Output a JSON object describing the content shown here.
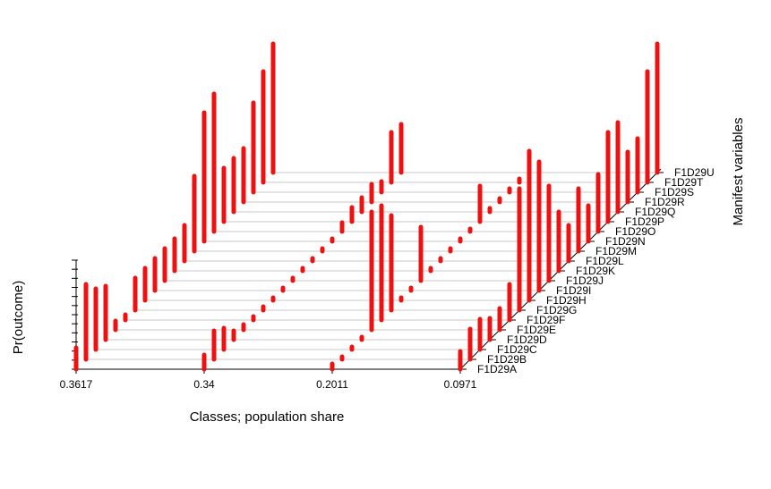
{
  "chart_data": {
    "type": "bar",
    "title": "",
    "xlabel": "Classes; population share",
    "ylabel": "Pr(outcome)",
    "zlabel": "Manifest variables",
    "ylim": [
      0,
      1
    ],
    "grid": true,
    "colors": {
      "bars": "#ee1111",
      "grid": "#c8c8c8",
      "axis": "#000000"
    },
    "classes": [
      "0.3617",
      "0.34",
      "0.2011",
      "0.0971"
    ],
    "variables": [
      "F1D29A",
      "F1D29B",
      "F1D29C",
      "F1D29D",
      "F1D29E",
      "F1D29F",
      "F1D29G",
      "F1D29H",
      "F1D29I",
      "F1D29J",
      "F1D29K",
      "F1D29L",
      "F1D29M",
      "F1D29N",
      "F1D29O",
      "F1D29P",
      "F1D29Q",
      "F1D29R",
      "F1D29S",
      "F1D29T",
      "F1D29U"
    ],
    "series": [
      {
        "values": [
          0.12,
          0.42,
          0.34,
          0.3,
          0.05,
          0.03,
          0.18,
          0.18,
          0.18,
          0.18,
          0.18,
          0.2,
          0.42,
          0.72,
          0.77,
          0.3,
          0.3,
          0.3,
          0.5,
          0.62,
          0.72
        ]
      },
      {
        "values": [
          0.08,
          0.16,
          0.12,
          0.05,
          0.03,
          0.02,
          0.02,
          0.01,
          0.01,
          0.01,
          0.01,
          0.01,
          0.01,
          0.01,
          0.05,
          0.08,
          0.08,
          0.1,
          0.06,
          0.28,
          0.27
        ]
      },
      {
        "values": [
          0.03,
          0.01,
          0.01,
          0.01,
          0.66,
          0.64,
          0.53,
          0.01,
          0.01,
          0.3,
          0.01,
          0.01,
          0.01,
          0.01,
          0.01,
          0.2,
          0.02,
          0.02,
          0.02,
          0.02,
          0.12
        ]
      },
      {
        "values": [
          0.1,
          0.17,
          0.17,
          0.12,
          0.12,
          0.2,
          0.68,
          0.73,
          0.72,
          0.53,
          0.33,
          0.2,
          0.35,
          0.2,
          0.32,
          0.5,
          0.5,
          0.28,
          0.3,
          0.62,
          0.72
        ]
      }
    ]
  }
}
